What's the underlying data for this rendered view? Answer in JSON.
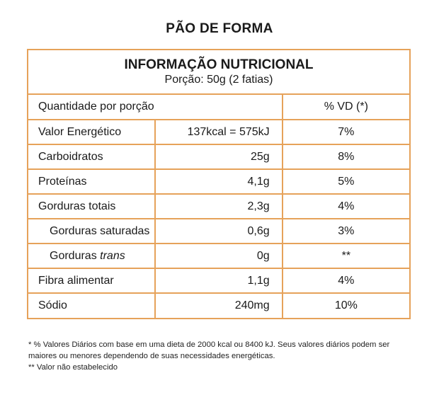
{
  "product_name": "PÃO DE FORMA",
  "panel": {
    "title": "INFORMAÇÃO NUTRICIONAL",
    "portion": "Porção: 50g (2 fatias)"
  },
  "table": {
    "header": {
      "quantity_label": "Quantidade por porção",
      "dv_label": "% VD (*)"
    },
    "rows": [
      {
        "name": "Valor Energético",
        "amount": "137kcal = 575kJ",
        "dv": "7%"
      },
      {
        "name": "Carboidratos",
        "amount": "25g",
        "dv": "8%"
      },
      {
        "name": "Proteínas",
        "amount": "4,1g",
        "dv": "5%"
      },
      {
        "name": "Gorduras totais",
        "amount": "2,3g",
        "dv": "4%"
      },
      {
        "name": "Gorduras saturadas",
        "amount": "0,6g",
        "dv": "3%"
      },
      {
        "name_prefix": "Gorduras",
        "name_italic": "trans",
        "amount": "0g",
        "dv": "**"
      },
      {
        "name": "Fibra alimentar",
        "amount": "1,1g",
        "dv": "4%"
      },
      {
        "name": "Sódio",
        "amount": "240mg",
        "dv": "10%"
      }
    ]
  },
  "footnotes": {
    "line1": "* % Valores Diários com base em uma dieta de 2000 kcal ou 8400 kJ. Seus valores diários podem ser maiores ou menores dependendo de suas necessidades energéticas.",
    "line2": "** Valor não estabelecido"
  },
  "colors": {
    "border": "#e6a25a",
    "text": "#1a1a1a"
  }
}
